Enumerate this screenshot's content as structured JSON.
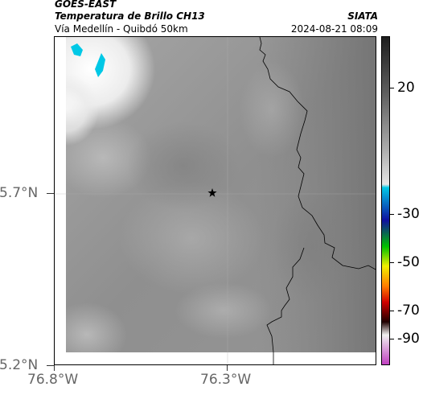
{
  "header": {
    "satellite": "GOES-EAST",
    "product": "Temperatura de Brillo CH13",
    "location": "Vía Medellín - Quibdó 50km",
    "organization": "SIATA",
    "timestamp": "2024-08-21 08:09"
  },
  "axes": {
    "lat_labels": [
      "5.7°N",
      "5.2°N"
    ],
    "lon_labels": [
      "76.8°W",
      "76.3°W"
    ]
  },
  "colorbar": {
    "tick_labels": [
      "20",
      "-30",
      "-50",
      "-70",
      "-90"
    ],
    "colors": [
      "#1e1e1e",
      "#5a5a5a",
      "#aaaaaa",
      "#e6e6e6",
      "#00c8e6",
      "#1010a0",
      "#00c000",
      "#f0f000",
      "#ff7f00",
      "#d00000",
      "#200000",
      "#f0f0f0",
      "#c040c0"
    ]
  },
  "map": {
    "marker_icon": "star-icon",
    "border_color": "#000000",
    "cold_cloud_color": "#00c8e6"
  }
}
